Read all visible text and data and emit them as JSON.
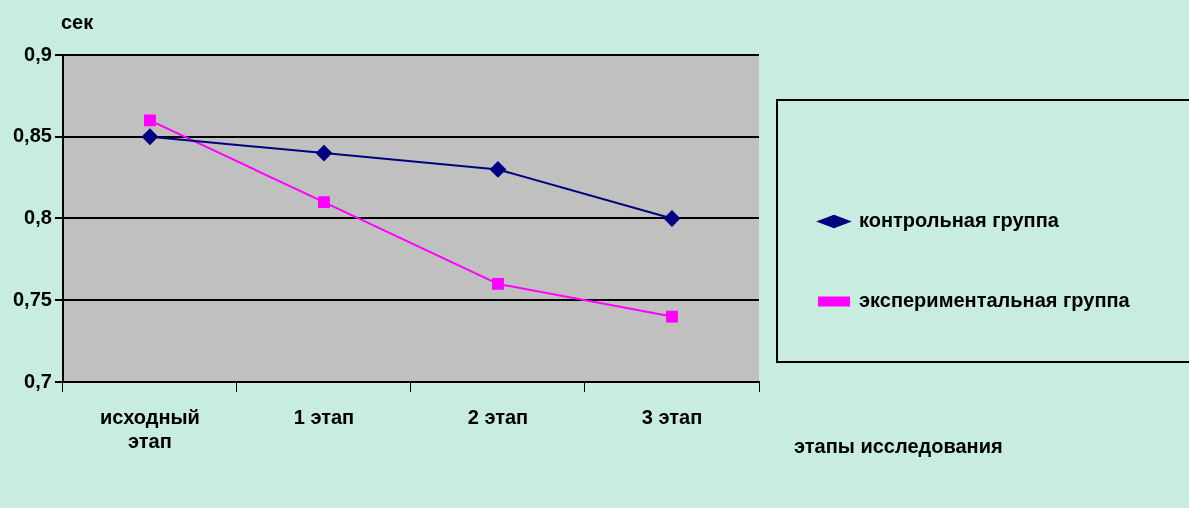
{
  "chart_data": {
    "type": "line",
    "ylabel": "сек",
    "xlabel": "этапы исследования",
    "categories": [
      "исходный этап",
      "1 этап",
      "2 этап",
      "3 этап"
    ],
    "series": [
      {
        "name": "контрольная группа",
        "color": "#000080",
        "marker": "diamond",
        "values": [
          0.85,
          0.84,
          0.83,
          0.8
        ]
      },
      {
        "name": "экспериментальная группа",
        "color": "#ff00ff",
        "marker": "square",
        "values": [
          0.86,
          0.81,
          0.76,
          0.74
        ]
      }
    ],
    "ylim": [
      0.7,
      0.9
    ],
    "yticks": [
      {
        "value": 0.7,
        "label": "0,7"
      },
      {
        "value": 0.75,
        "label": "0,75"
      },
      {
        "value": 0.8,
        "label": "0,8"
      },
      {
        "value": 0.85,
        "label": "0,85"
      },
      {
        "value": 0.9,
        "label": "0,9"
      }
    ],
    "grid": "y",
    "legend": "right"
  }
}
